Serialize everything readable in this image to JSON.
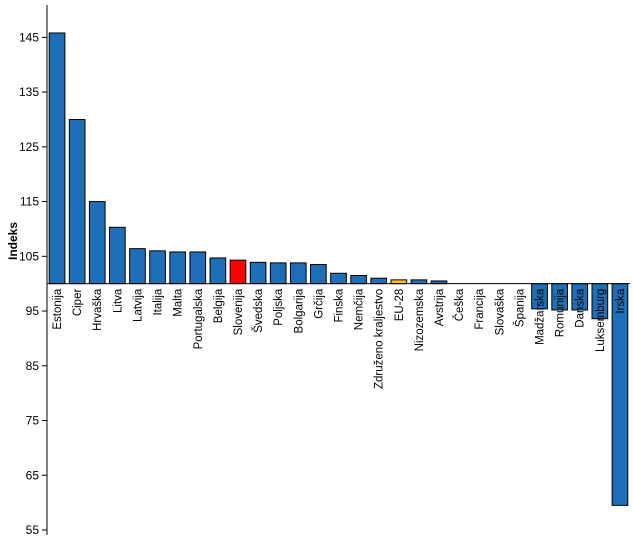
{
  "chart_data": {
    "type": "bar",
    "title": "",
    "xlabel": "",
    "ylabel": "Indeks",
    "ylim": [
      55,
      150
    ],
    "baseline": 100,
    "yticks": [
      55,
      65,
      75,
      85,
      95,
      105,
      115,
      125,
      135,
      145
    ],
    "grid": false,
    "legend": "none",
    "colors": {
      "default": "#1f6fb8",
      "highlight": "#ff0000",
      "aggregate": "#ffc000",
      "stroke": "#000000"
    },
    "categories": [
      "Estonija",
      "Ciper",
      "Hrvaška",
      "Litva",
      "Latvija",
      "Italija",
      "Malta",
      "Portugalska",
      "Belgija",
      "Slovenija",
      "Švedska",
      "Poljska",
      "Bolgarija",
      "Grčija",
      "Finska",
      "Nemčija",
      "Združeno kraljestvo",
      "EU-28",
      "Nizozemska",
      "Avstrija",
      "Češka",
      "Francija",
      "Slovaška",
      "Španija",
      "Madžarska",
      "Romunija",
      "Danska",
      "Luksemburg",
      "Irska"
    ],
    "values": [
      145.8,
      130.0,
      115.0,
      110.3,
      106.4,
      106.0,
      105.8,
      105.8,
      104.7,
      104.3,
      103.9,
      103.8,
      103.8,
      103.5,
      101.9,
      101.5,
      101.0,
      100.7,
      100.7,
      100.5,
      100.0,
      100.0,
      100.0,
      100.0,
      95.4,
      95.2,
      95.2,
      93.6,
      59.5
    ],
    "highlight": [
      "Slovenija"
    ],
    "aggregate": [
      "EU-28"
    ]
  }
}
